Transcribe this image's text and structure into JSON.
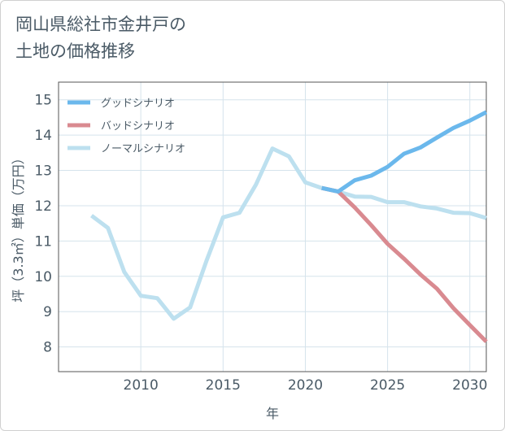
{
  "title_lines": [
    "岡山県総社市金井戸の",
    "土地の価格推移"
  ],
  "chart_data": {
    "type": "line",
    "xlabel": "年",
    "ylabel": "坪（3.3㎡）単価（万円）",
    "xlim": [
      2005,
      2031
    ],
    "ylim": [
      7.3,
      15.5
    ],
    "xticks": [
      2010,
      2015,
      2020,
      2025,
      2030
    ],
    "yticks": [
      8,
      9,
      10,
      11,
      12,
      13,
      14,
      15
    ],
    "grid": true,
    "legend_position": "top-left",
    "series": [
      {
        "name": "グッドシナリオ",
        "color": "#6bb8ec",
        "x": [
          2021,
          2022,
          2023,
          2024,
          2025,
          2026,
          2027,
          2028,
          2029,
          2030,
          2031
        ],
        "y": [
          12.5,
          12.4,
          12.72,
          12.85,
          13.1,
          13.47,
          13.65,
          13.93,
          14.2,
          14.41,
          14.65
        ]
      },
      {
        "name": "バッドシナリオ",
        "color": "#d98a90",
        "x": [
          2021,
          2022,
          2023,
          2024,
          2025,
          2026,
          2027,
          2028,
          2029,
          2030,
          2031
        ],
        "y": [
          12.5,
          12.4,
          11.95,
          11.45,
          10.92,
          10.5,
          10.05,
          9.65,
          9.1,
          8.62,
          8.15
        ]
      },
      {
        "name": "ノーマルシナリオ",
        "color": "#bde0ef",
        "x": [
          2007,
          2008,
          2009,
          2010,
          2011,
          2012,
          2013,
          2014,
          2015,
          2016,
          2017,
          2018,
          2019,
          2020,
          2021,
          2022,
          2023,
          2024,
          2025,
          2026,
          2027,
          2028,
          2029,
          2030,
          2031
        ],
        "y": [
          11.72,
          11.37,
          10.12,
          9.45,
          9.38,
          8.8,
          9.12,
          10.45,
          11.67,
          11.8,
          12.6,
          13.62,
          13.4,
          12.66,
          12.5,
          12.4,
          12.26,
          12.25,
          12.1,
          12.1,
          11.98,
          11.92,
          11.8,
          11.79,
          11.65
        ]
      }
    ]
  }
}
